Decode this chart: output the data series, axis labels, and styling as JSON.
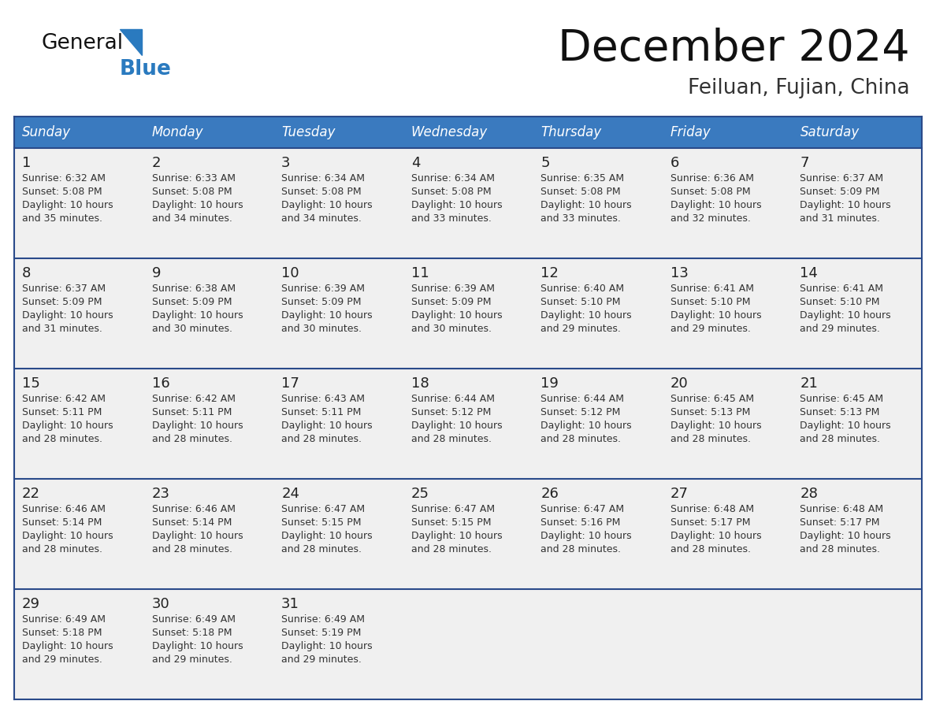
{
  "title": "December 2024",
  "subtitle": "Feiluan, Fujian, China",
  "days_of_week": [
    "Sunday",
    "Monday",
    "Tuesday",
    "Wednesday",
    "Thursday",
    "Friday",
    "Saturday"
  ],
  "header_bg": "#3a7abf",
  "header_text": "#ffffff",
  "cell_bg": "#f0f0f0",
  "row_border_color": "#2a4a8a",
  "day_num_color": "#222222",
  "text_color": "#333333",
  "title_color": "#111111",
  "subtitle_color": "#333333",
  "logo_general_color": "#111111",
  "logo_blue_color": "#2a7abf",
  "calendar_data": [
    [
      {
        "day": 1,
        "sunrise": "6:32 AM",
        "sunset": "5:08 PM",
        "daylight_suffix": "35 minutes."
      },
      {
        "day": 2,
        "sunrise": "6:33 AM",
        "sunset": "5:08 PM",
        "daylight_suffix": "34 minutes."
      },
      {
        "day": 3,
        "sunrise": "6:34 AM",
        "sunset": "5:08 PM",
        "daylight_suffix": "34 minutes."
      },
      {
        "day": 4,
        "sunrise": "6:34 AM",
        "sunset": "5:08 PM",
        "daylight_suffix": "33 minutes."
      },
      {
        "day": 5,
        "sunrise": "6:35 AM",
        "sunset": "5:08 PM",
        "daylight_suffix": "33 minutes."
      },
      {
        "day": 6,
        "sunrise": "6:36 AM",
        "sunset": "5:08 PM",
        "daylight_suffix": "32 minutes."
      },
      {
        "day": 7,
        "sunrise": "6:37 AM",
        "sunset": "5:09 PM",
        "daylight_suffix": "31 minutes."
      }
    ],
    [
      {
        "day": 8,
        "sunrise": "6:37 AM",
        "sunset": "5:09 PM",
        "daylight_suffix": "31 minutes."
      },
      {
        "day": 9,
        "sunrise": "6:38 AM",
        "sunset": "5:09 PM",
        "daylight_suffix": "30 minutes."
      },
      {
        "day": 10,
        "sunrise": "6:39 AM",
        "sunset": "5:09 PM",
        "daylight_suffix": "30 minutes."
      },
      {
        "day": 11,
        "sunrise": "6:39 AM",
        "sunset": "5:09 PM",
        "daylight_suffix": "30 minutes."
      },
      {
        "day": 12,
        "sunrise": "6:40 AM",
        "sunset": "5:10 PM",
        "daylight_suffix": "29 minutes."
      },
      {
        "day": 13,
        "sunrise": "6:41 AM",
        "sunset": "5:10 PM",
        "daylight_suffix": "29 minutes."
      },
      {
        "day": 14,
        "sunrise": "6:41 AM",
        "sunset": "5:10 PM",
        "daylight_suffix": "29 minutes."
      }
    ],
    [
      {
        "day": 15,
        "sunrise": "6:42 AM",
        "sunset": "5:11 PM",
        "daylight_suffix": "28 minutes."
      },
      {
        "day": 16,
        "sunrise": "6:42 AM",
        "sunset": "5:11 PM",
        "daylight_suffix": "28 minutes."
      },
      {
        "day": 17,
        "sunrise": "6:43 AM",
        "sunset": "5:11 PM",
        "daylight_suffix": "28 minutes."
      },
      {
        "day": 18,
        "sunrise": "6:44 AM",
        "sunset": "5:12 PM",
        "daylight_suffix": "28 minutes."
      },
      {
        "day": 19,
        "sunrise": "6:44 AM",
        "sunset": "5:12 PM",
        "daylight_suffix": "28 minutes."
      },
      {
        "day": 20,
        "sunrise": "6:45 AM",
        "sunset": "5:13 PM",
        "daylight_suffix": "28 minutes."
      },
      {
        "day": 21,
        "sunrise": "6:45 AM",
        "sunset": "5:13 PM",
        "daylight_suffix": "28 minutes."
      }
    ],
    [
      {
        "day": 22,
        "sunrise": "6:46 AM",
        "sunset": "5:14 PM",
        "daylight_suffix": "28 minutes."
      },
      {
        "day": 23,
        "sunrise": "6:46 AM",
        "sunset": "5:14 PM",
        "daylight_suffix": "28 minutes."
      },
      {
        "day": 24,
        "sunrise": "6:47 AM",
        "sunset": "5:15 PM",
        "daylight_suffix": "28 minutes."
      },
      {
        "day": 25,
        "sunrise": "6:47 AM",
        "sunset": "5:15 PM",
        "daylight_suffix": "28 minutes."
      },
      {
        "day": 26,
        "sunrise": "6:47 AM",
        "sunset": "5:16 PM",
        "daylight_suffix": "28 minutes."
      },
      {
        "day": 27,
        "sunrise": "6:48 AM",
        "sunset": "5:17 PM",
        "daylight_suffix": "28 minutes."
      },
      {
        "day": 28,
        "sunrise": "6:48 AM",
        "sunset": "5:17 PM",
        "daylight_suffix": "28 minutes."
      }
    ],
    [
      {
        "day": 29,
        "sunrise": "6:49 AM",
        "sunset": "5:18 PM",
        "daylight_suffix": "29 minutes."
      },
      {
        "day": 30,
        "sunrise": "6:49 AM",
        "sunset": "5:18 PM",
        "daylight_suffix": "29 minutes."
      },
      {
        "day": 31,
        "sunrise": "6:49 AM",
        "sunset": "5:19 PM",
        "daylight_suffix": "29 minutes."
      },
      null,
      null,
      null,
      null
    ]
  ]
}
